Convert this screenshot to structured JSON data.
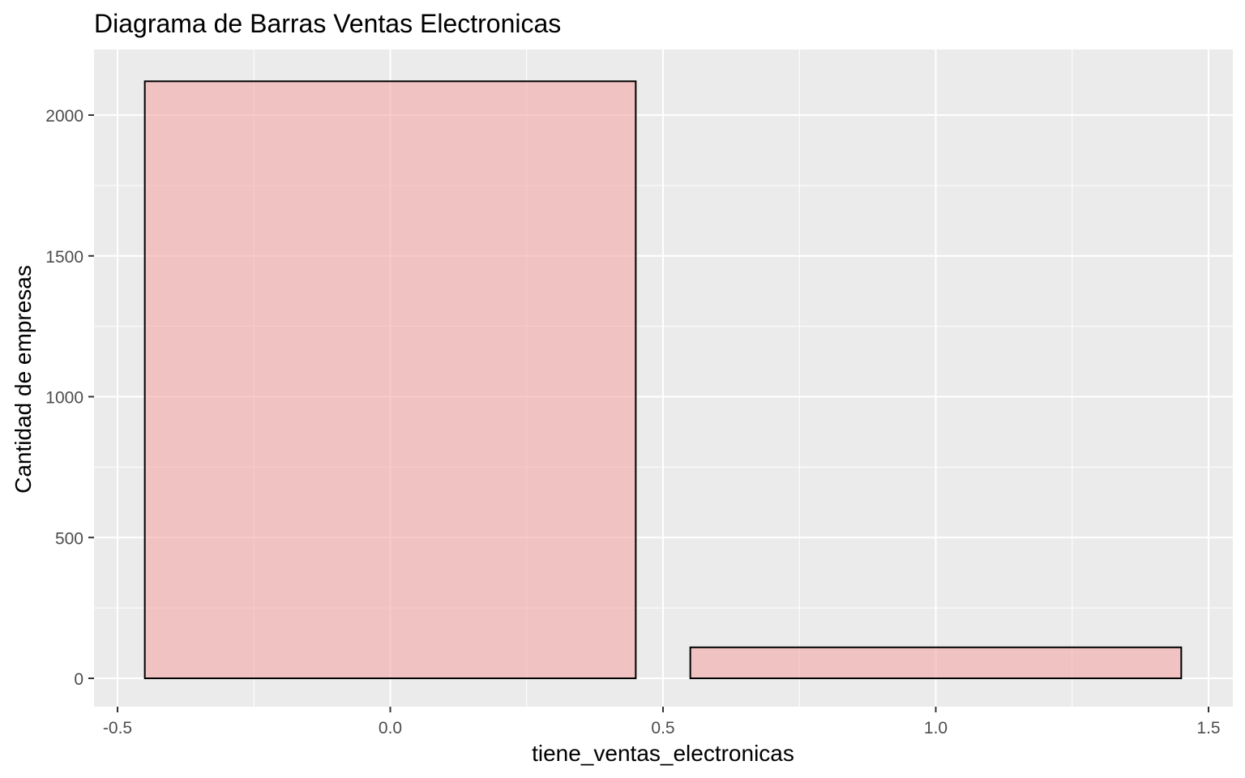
{
  "chart_data": {
    "type": "bar",
    "title": "Diagrama de Barras Ventas Electronicas",
    "xlabel": "tiene_ventas_electronicas",
    "ylabel": "Cantidad de empresas",
    "x": [
      0,
      1
    ],
    "values": [
      2120,
      110
    ],
    "bar_width": 0.9,
    "xlim": [
      -0.5,
      1.5
    ],
    "ylim": [
      0,
      2000
    ],
    "x_ticks": [
      {
        "value": -0.5,
        "label": "-0.5"
      },
      {
        "value": 0.0,
        "label": "0.0"
      },
      {
        "value": 0.5,
        "label": "0.5"
      },
      {
        "value": 1.0,
        "label": "1.0"
      },
      {
        "value": 1.5,
        "label": "1.5"
      }
    ],
    "y_ticks": [
      {
        "value": 0,
        "label": "0"
      },
      {
        "value": 500,
        "label": "500"
      },
      {
        "value": 1000,
        "label": "1000"
      },
      {
        "value": 1500,
        "label": "1500"
      },
      {
        "value": 2000,
        "label": "2000"
      }
    ],
    "grid": true,
    "legend": "none",
    "colors": {
      "bar_fill": "#F4A7A7",
      "bar_outline": "#000000",
      "panel_background": "#EBEBEB",
      "grid_major": "#FFFFFF",
      "tick_text": "#4D4D4D"
    }
  }
}
